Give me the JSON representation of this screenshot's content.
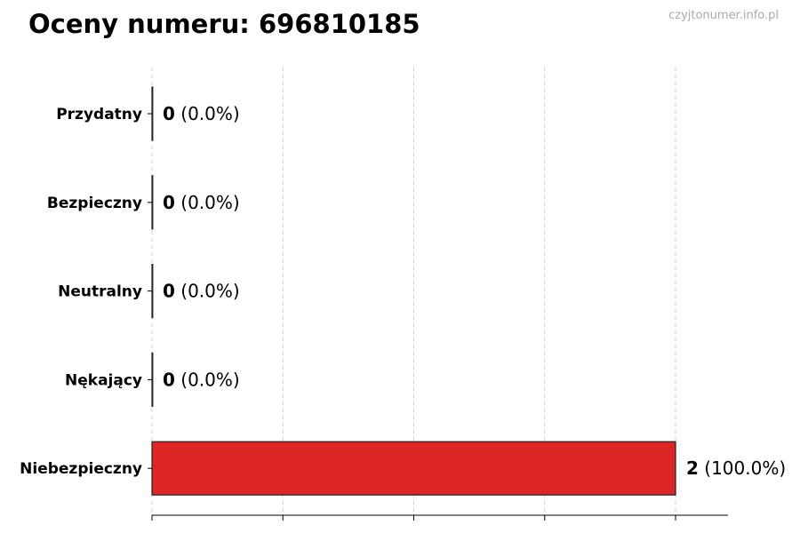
{
  "chart_data": {
    "type": "bar",
    "orientation": "horizontal",
    "title": "Oceny numeru: 696810185",
    "watermark": "czyjtonumer.info.pl",
    "categories": [
      "Przydatny",
      "Bezpieczny",
      "Neutralny",
      "Nękający",
      "Niebezpieczny"
    ],
    "values": [
      0,
      0,
      0,
      0,
      2
    ],
    "value_labels": [
      "0",
      "0",
      "0",
      "0",
      "2"
    ],
    "percent_labels": [
      "(0.0%)",
      "(0.0%)",
      "(0.0%)",
      "(0.0%)",
      "(100.0%)"
    ],
    "bar_color": "#dc2626",
    "xlim": [
      0,
      2.2
    ],
    "x_gridlines": [
      0,
      0.5,
      1,
      1.5,
      2
    ],
    "grid": "vertical dashed",
    "xlabel": "",
    "ylabel": ""
  }
}
